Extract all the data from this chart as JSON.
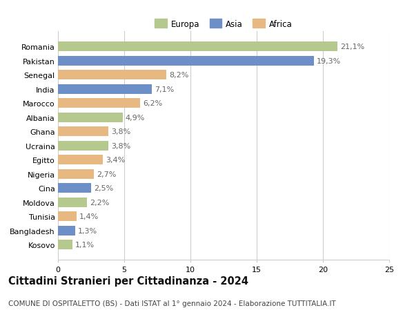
{
  "countries": [
    "Romania",
    "Pakistan",
    "Senegal",
    "India",
    "Marocco",
    "Albania",
    "Ghana",
    "Ucraina",
    "Egitto",
    "Nigeria",
    "Cina",
    "Moldova",
    "Tunisia",
    "Bangladesh",
    "Kosovo"
  ],
  "values": [
    21.1,
    19.3,
    8.2,
    7.1,
    6.2,
    4.9,
    3.8,
    3.8,
    3.4,
    2.7,
    2.5,
    2.2,
    1.4,
    1.3,
    1.1
  ],
  "continents": [
    "Europa",
    "Asia",
    "Africa",
    "Asia",
    "Africa",
    "Europa",
    "Africa",
    "Europa",
    "Africa",
    "Africa",
    "Asia",
    "Europa",
    "Africa",
    "Asia",
    "Europa"
  ],
  "colors": {
    "Europa": "#b5c98e",
    "Asia": "#6d8fc7",
    "Africa": "#e8b882"
  },
  "legend_order": [
    "Europa",
    "Asia",
    "Africa"
  ],
  "title": "Cittadini Stranieri per Cittadinanza - 2024",
  "subtitle": "COMUNE DI OSPITALETTO (BS) - Dati ISTAT al 1° gennaio 2024 - Elaborazione TUTTITALIA.IT",
  "xlim": [
    0,
    25
  ],
  "xticks": [
    0,
    5,
    10,
    15,
    20,
    25
  ],
  "bg_color": "#ffffff",
  "grid_color": "#cccccc",
  "bar_label_color": "#666666",
  "label_fontsize": 8.0,
  "tick_fontsize": 8.0,
  "ylabel_fontsize": 8.0,
  "title_fontsize": 10.5,
  "subtitle_fontsize": 7.5,
  "legend_fontsize": 8.5
}
